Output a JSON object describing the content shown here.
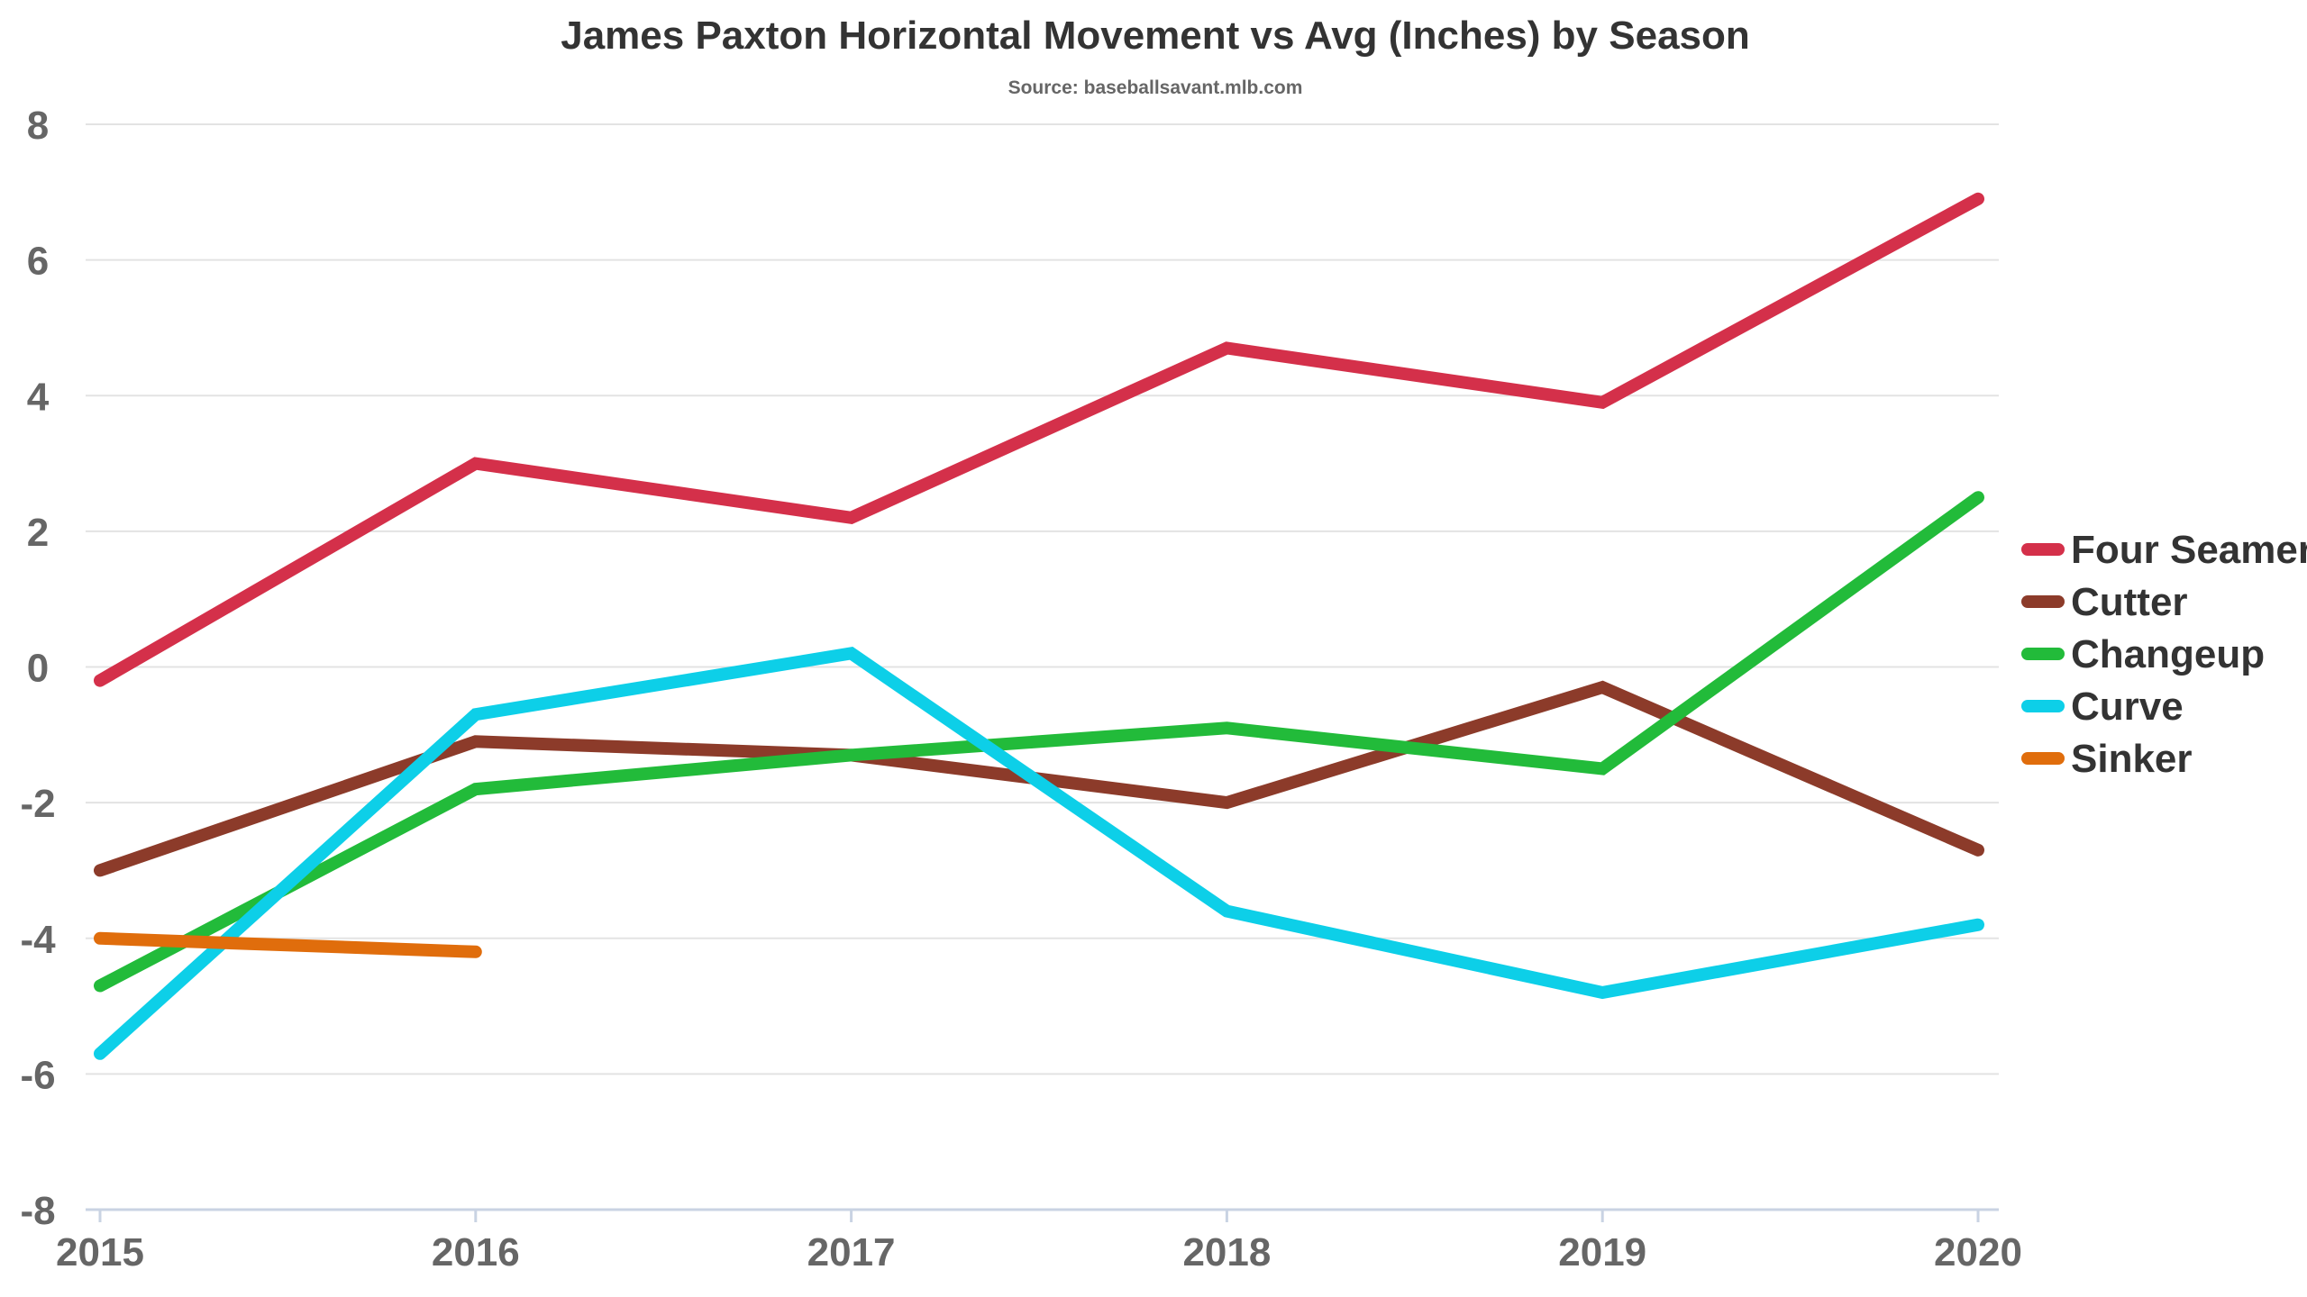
{
  "chart_data": {
    "type": "line",
    "title": "James Paxton Horizontal Movement vs Avg (Inches) by Season",
    "subtitle": "Source: baseballsavant.mlb.com",
    "xlabel": "",
    "ylabel": "",
    "categories": [
      "2015",
      "2016",
      "2017",
      "2018",
      "2019",
      "2020"
    ],
    "ylim": [
      -8,
      8
    ],
    "yticks": [
      -8,
      -6,
      -4,
      -2,
      0,
      2,
      4,
      6,
      8
    ],
    "ytick_labels": [
      "-8",
      "-6",
      "-4",
      "-2",
      "0",
      "2",
      "4",
      "6",
      "8"
    ],
    "grid": true,
    "legend_position": "right",
    "series": [
      {
        "name": "Four Seamer",
        "color": "#d4304a",
        "values": [
          -0.2,
          3.0,
          2.2,
          4.7,
          3.9,
          6.9
        ]
      },
      {
        "name": "Cutter",
        "color": "#8c3b2a",
        "values": [
          -3.0,
          -1.1,
          -1.3,
          -2.0,
          -0.3,
          -2.7
        ]
      },
      {
        "name": "Changeup",
        "color": "#22bb3a",
        "values": [
          -4.7,
          -1.8,
          -1.3,
          -0.9,
          -1.5,
          2.5
        ]
      },
      {
        "name": "Curve",
        "color": "#0dcfe8",
        "values": [
          -5.7,
          -0.7,
          0.2,
          -3.6,
          -4.8,
          -3.8
        ]
      },
      {
        "name": "Sinker",
        "color": "#e06d0c",
        "values": [
          -4.0,
          -4.2,
          null,
          null,
          null,
          null
        ]
      }
    ]
  }
}
